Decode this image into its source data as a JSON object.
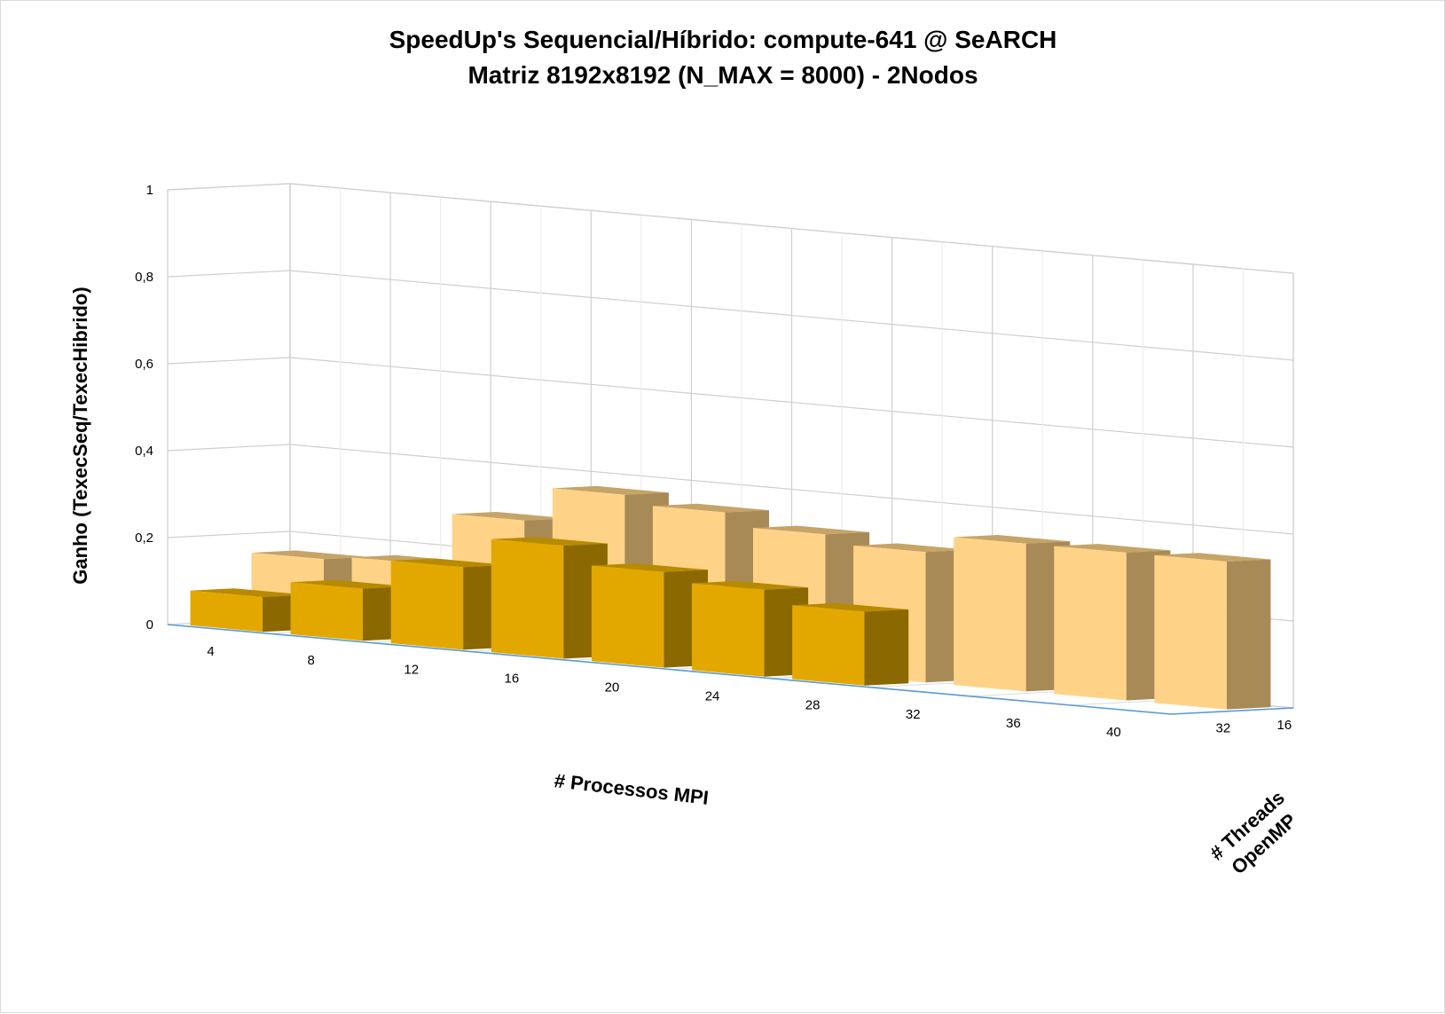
{
  "chart_data": {
    "type": "bar",
    "variant": "3d-clustered-by-depth",
    "title": "SpeedUp's Sequencial/Híbrido: compute-641 @ SeARCH",
    "subtitle": "Matriz 8192x8192 (N_MAX = 8000) - 2Nodos",
    "xlabel": "# Processos MPI",
    "ylabel": "Ganho (TexecSeq/TexecHibrido)",
    "zlabel_lines": [
      "# Threads",
      "OpenMP"
    ],
    "categories": [
      "4",
      "8",
      "12",
      "16",
      "20",
      "24",
      "28",
      "32",
      "36",
      "40"
    ],
    "y_ticks": [
      "0",
      "0,2",
      "0,4",
      "0,6",
      "0,8",
      "1"
    ],
    "ylim": [
      0,
      1
    ],
    "grid": true,
    "series": [
      {
        "name": "32",
        "values": [
          0.08,
          0.12,
          0.19,
          0.26,
          0.22,
          0.2,
          0.17,
          null,
          null,
          null
        ],
        "color": "#E3A800",
        "side_color": "#8B6900",
        "top_color": "#B88A00"
      },
      {
        "name": "16",
        "values": [
          0.16,
          0.17,
          0.29,
          0.37,
          0.35,
          0.32,
          0.3,
          0.34,
          0.34,
          0.34
        ],
        "color": "#FFD387",
        "side_color": "#A88A56",
        "top_color": "#C6A467"
      }
    ]
  }
}
